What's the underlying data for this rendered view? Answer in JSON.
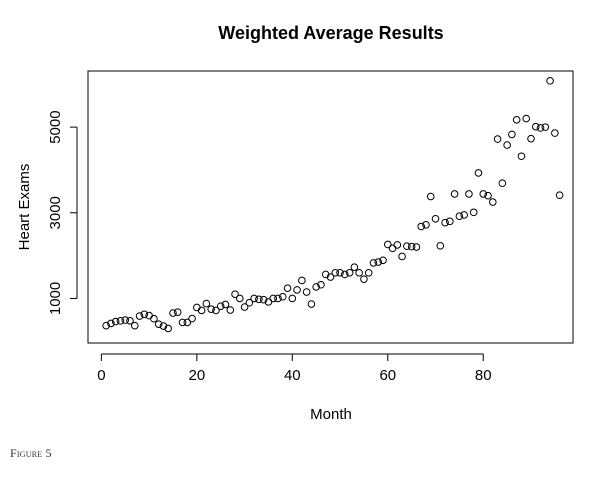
{
  "caption": "Figure 5",
  "chart_data": {
    "type": "scatter",
    "title": "Weighted Average Results",
    "xlabel": "Month",
    "ylabel": "Heart Exams",
    "xlim": [
      -2.8,
      98.8
    ],
    "ylim": [
      -40,
      6310
    ],
    "xticks": [
      0,
      20,
      40,
      60,
      80
    ],
    "yticks": [
      1000,
      3000,
      5000
    ],
    "xtick_labels": [
      "0",
      "20",
      "40",
      "60",
      "80"
    ],
    "ytick_labels": [
      "1000",
      "3000",
      "5000"
    ],
    "grid": false,
    "legend": "none",
    "marker": "open-circle",
    "color": "#000000",
    "series": [
      {
        "x": [
          1,
          2,
          3,
          4,
          5,
          6,
          7,
          8,
          9,
          10,
          11,
          12,
          13,
          14,
          15,
          16,
          17,
          18,
          19,
          20,
          21,
          22,
          23,
          24,
          25,
          26,
          27,
          28,
          29,
          30,
          31,
          32,
          33,
          34,
          35,
          36,
          37,
          38,
          39,
          40,
          41,
          42,
          43,
          44,
          45,
          46,
          47,
          48,
          49,
          50,
          51,
          52,
          53,
          54,
          55,
          56,
          57,
          58,
          59,
          60,
          61,
          62,
          63,
          64,
          65,
          66,
          67,
          68,
          69,
          70,
          71,
          72,
          73,
          74,
          75,
          76,
          77,
          78,
          79,
          80,
          81,
          82,
          83,
          84,
          85,
          86,
          87,
          88,
          89,
          90,
          91,
          92,
          93,
          94,
          95,
          96
        ],
        "y": [
          365,
          417,
          460,
          477,
          495,
          478,
          365,
          590,
          630,
          600,
          527,
          400,
          355,
          300,
          660,
          680,
          440,
          440,
          530,
          790,
          720,
          880,
          750,
          720,
          820,
          860,
          730,
          1100,
          1000,
          800,
          900,
          1000,
          980,
          970,
          920,
          1000,
          1000,
          1040,
          1240,
          1000,
          1200,
          1420,
          1150,
          870,
          1270,
          1320,
          1560,
          1500,
          1600,
          1600,
          1560,
          1600,
          1730,
          1600,
          1450,
          1600,
          1830,
          1850,
          1890,
          2260,
          2170,
          2250,
          1980,
          2220,
          2210,
          2200,
          2680,
          2720,
          3380,
          2860,
          2230,
          2770,
          2800,
          3440,
          2920,
          2950,
          3440,
          3010,
          3930,
          3440,
          3400,
          3250,
          4720,
          3690,
          4580,
          4830,
          5170,
          4320,
          5200,
          4730,
          5010,
          4980,
          5000,
          6080,
          4860,
          3410
        ]
      }
    ]
  }
}
